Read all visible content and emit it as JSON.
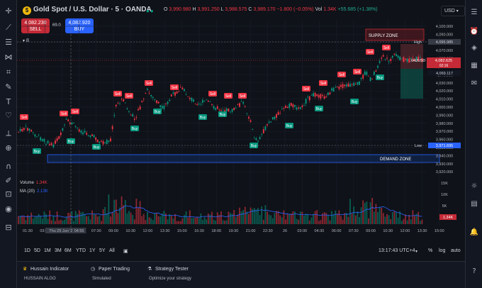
{
  "header": {
    "title": "Gold Spot / U.S. Dollar · 5 · OANDA",
    "ohlc": {
      "o_label": "O",
      "o": "3,990.980",
      "h_label": "H",
      "h": "3,991.250",
      "l_label": "L",
      "l": "3,988.575",
      "c_label": "C",
      "c": "3,989.170",
      "chg": "−1.800 (−0.05%)",
      "vol_label": "Vol",
      "vol": "1.34K",
      "vol_chg": "+55.685 (+1.38%)"
    },
    "currency": "USD"
  },
  "trade": {
    "sell_price": "4,082.230",
    "sell_label": "SELL",
    "spread": "69.0",
    "buy_price": "4,082.920",
    "buy_label": "BUY"
  },
  "chart": {
    "collapse_label": "8",
    "supply_zone": "SUPPLY ZONE",
    "demand_zone": "DEMAND ZONE",
    "high_label": "High",
    "high_value": "4,095.985",
    "low_label": "Low",
    "low_value": "3,971.695",
    "price_badge_symbol": "XAUUSD",
    "price_badge_value": "4,082.625",
    "price_badge_timer": "02:16",
    "price_badge_2": "4,069.117",
    "volume_label": "Volume",
    "volume_value": "1.34K",
    "ma_label": "MA (20)",
    "ma_value": "2.13K",
    "vol_badge": "1.34K",
    "buy_label": "Buy",
    "sell_label": "Sell",
    "price_ticks": [
      "4,100.000",
      "4,090.000",
      "4,080.000",
      "4,070.000",
      "4,060.000",
      "4,050.000",
      "4,040.000",
      "4,030.000",
      "4,020.000",
      "4,010.000",
      "4,000.000",
      "3,990.000",
      "3,980.000",
      "3,970.000",
      "3,960.000",
      "3,950.000",
      "3,940.000",
      "3,930.000",
      "3,920.000"
    ],
    "vol_ticks": [
      "15K",
      "10K",
      "5K"
    ],
    "time_ticks": [
      "01:30",
      "03:00",
      "Thu 25 Jun '26",
      "04:55",
      "07:30",
      "09:00",
      "10:30",
      "12:00",
      "13:30",
      "15:00",
      "16:30",
      "18:00",
      "19:30",
      "21:00",
      "22:30",
      "26",
      "03:00",
      "04:30",
      "06:00",
      "07:30",
      "09:00",
      "10:30",
      "12:00",
      "13:30",
      "15:00"
    ]
  },
  "timeframes": [
    "1D",
    "5D",
    "1M",
    "3M",
    "6M",
    "YTD",
    "1Y",
    "5Y",
    "All"
  ],
  "status": {
    "clock": "13:17:43 UTC+4",
    "percent": "%",
    "log": "log",
    "auto": "auto"
  },
  "panel": {
    "indicator_title": "Hussain Indicator",
    "indicator_sub": "HUSSAIN ALGO",
    "paper_title": "Paper Trading",
    "paper_sub": "Simulated",
    "strategy_title": "Strategy Tester",
    "strategy_sub": "Optimize your strategy"
  },
  "colors": {
    "up": "#089981",
    "down": "#f23645",
    "accent": "#2962ff",
    "supply": "#c52a36",
    "demand": "#2962ff"
  },
  "icons": {
    "left": [
      "crosshair-icon",
      "trendline-icon",
      "fib-icon",
      "pattern-icon",
      "measure-icon",
      "brush-icon",
      "text-icon",
      "heart-icon",
      "ruler-icon",
      "zoom-icon",
      "magnet-icon",
      "lock-drawings-icon",
      "lock-icon",
      "eye-icon",
      "trash-icon"
    ],
    "right": [
      "watchlist-icon",
      "alerts-icon",
      "layers-icon",
      "calendar-icon",
      "chat-icon",
      "ideas-icon",
      "news-icon",
      "notifications-icon",
      "help-icon"
    ]
  }
}
